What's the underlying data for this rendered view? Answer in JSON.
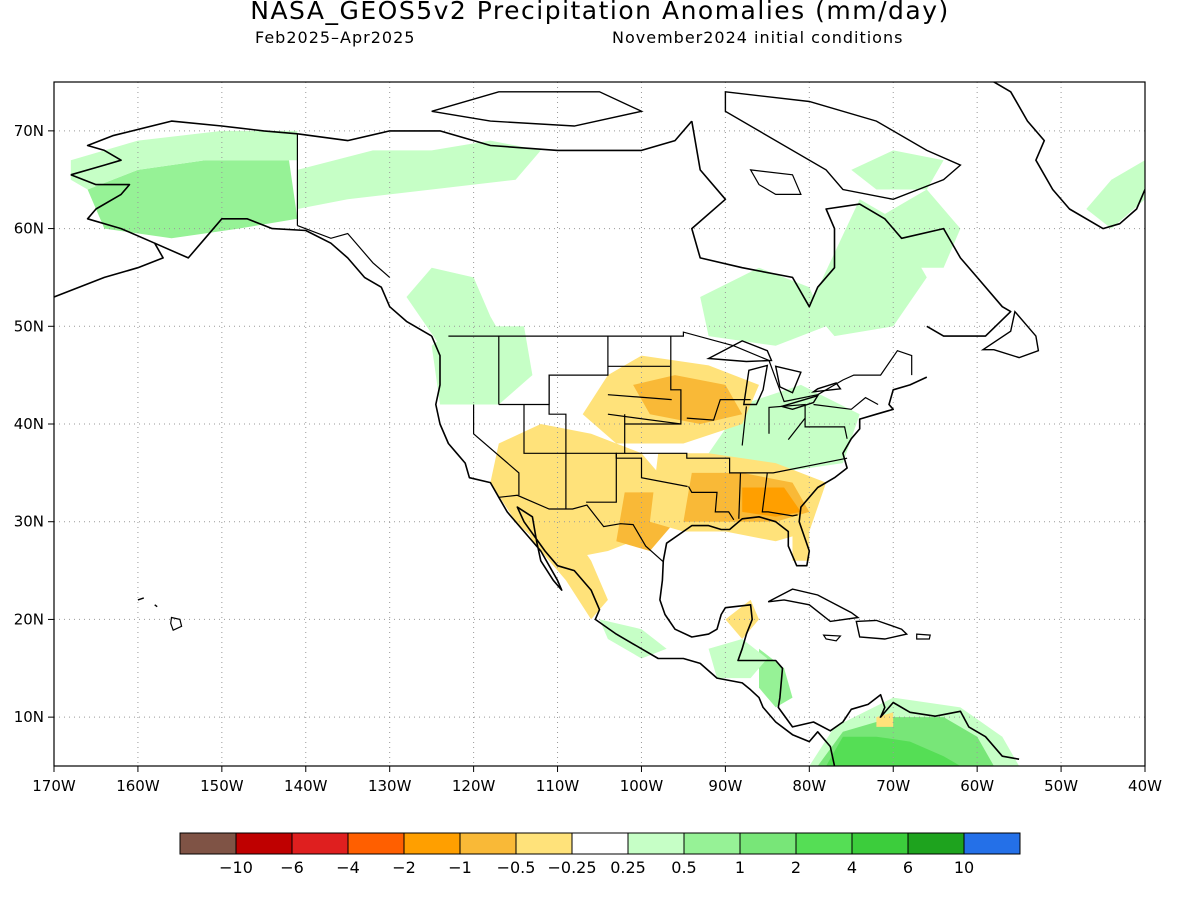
{
  "title": "NASA_GEOS5v2 Precipitation Anomalies (mm/day)",
  "subtitle_period": "Feb2025–Apr2025",
  "subtitle_init": "November2024 initial conditions",
  "map": {
    "lon_range": [
      -170,
      -40
    ],
    "lat_range": [
      5,
      75
    ],
    "lon_ticks": [
      "170W",
      "160W",
      "150W",
      "140W",
      "130W",
      "120W",
      "110W",
      "100W",
      "90W",
      "80W",
      "70W",
      "60W",
      "50W",
      "40W"
    ],
    "lat_ticks": [
      "10N",
      "20N",
      "30N",
      "40N",
      "50N",
      "60N",
      "70N"
    ],
    "grid": true
  },
  "colorbar": {
    "colors": [
      "#7f5345",
      "#bf0000",
      "#df1f1f",
      "#ff5f00",
      "#ff9f00",
      "#f9b937",
      "#ffe27a",
      "#ffffff",
      "#c6ffc6",
      "#96f296",
      "#78e678",
      "#55de55",
      "#3ccd3c",
      "#1ea31e",
      "#2470e8"
    ],
    "labels": [
      "−10",
      "−6",
      "−4",
      "−2",
      "−1",
      "−0.5",
      "−0.25",
      "0.25",
      "0.5",
      "1",
      "2",
      "4",
      "6",
      "10"
    ]
  },
  "chart_data": {
    "type": "heatmap",
    "title": "NASA_GEOS5v2 Precipitation Anomalies (mm/day)",
    "xlabel": "",
    "ylabel": "",
    "xlim": [
      -170,
      -40
    ],
    "ylim": [
      5,
      75
    ],
    "units": "mm/day",
    "regions": [
      {
        "lon": [
          -165,
          -145
        ],
        "lat": [
          59,
          68
        ],
        "level": 1
      },
      {
        "lon": [
          -133,
          -112
        ],
        "lat": [
          64,
          71
        ],
        "level": 0.5
      },
      {
        "lon": [
          -100,
          -80
        ],
        "lat": [
          41,
          46
        ],
        "level": -0.5
      },
      {
        "lon": [
          -100,
          -93
        ],
        "lat": [
          40,
          45
        ],
        "level": -1
      },
      {
        "lon": [
          -95,
          -78
        ],
        "lat": [
          29,
          35
        ],
        "level": -1
      },
      {
        "lon": [
          -88,
          -81
        ],
        "lat": [
          31,
          33
        ],
        "level": -2
      },
      {
        "lon": [
          -117,
          -100
        ],
        "lat": [
          28,
          40
        ],
        "level": -0.5
      },
      {
        "lon": [
          -89,
          -78
        ],
        "lat": [
          37,
          41
        ],
        "level": 1
      },
      {
        "lon": [
          -78,
          -72
        ],
        "lat": [
          5,
          9
        ],
        "level": 4
      },
      {
        "lon": [
          -75,
          -60
        ],
        "lat": [
          5,
          10
        ],
        "level": 2
      },
      {
        "lon": [
          -82,
          -72
        ],
        "lat": [
          48,
          62
        ],
        "level": 0.5
      },
      {
        "lon": [
          -84,
          -80
        ],
        "lat": [
          12,
          16
        ],
        "level": 1
      }
    ]
  }
}
